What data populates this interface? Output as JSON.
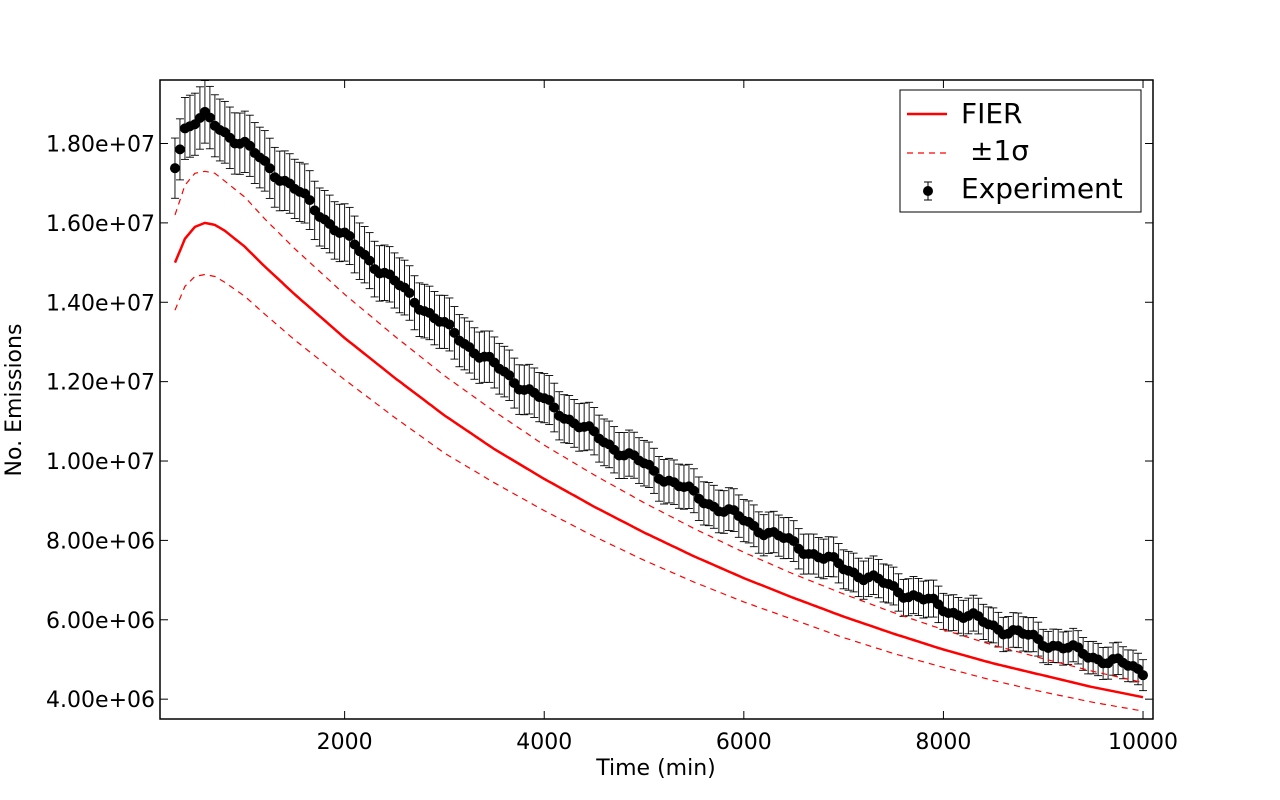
{
  "chart_data": {
    "type": "line",
    "xlabel": "Time (min)",
    "ylabel": "No. Emissions",
    "xlim": [
      150,
      10100
    ],
    "ylim": [
      3500000,
      19600000
    ],
    "x_ticks": [
      2000,
      4000,
      6000,
      8000,
      10000
    ],
    "y_ticks": [
      4000000,
      6000000,
      8000000,
      10000000,
      12000000,
      14000000,
      16000000,
      18000000
    ],
    "x_tick_labels": [
      "2000",
      "4000",
      "6000",
      "8000",
      "10000"
    ],
    "y_tick_labels": [
      "4.00e+06",
      "6.00e+06",
      "8.00e+06",
      "1.00e+07",
      "1.20e+07",
      "1.40e+07",
      "1.60e+07",
      "1.80e+07"
    ],
    "grid": false,
    "legend_position": "top-right",
    "legend": [
      {
        "label": "FIER",
        "style": "solid-line",
        "color": "#ff0000"
      },
      {
        "label": "±1σ",
        "style": "dashed-line",
        "color": "#ff0000"
      },
      {
        "label": "Experiment",
        "style": "marker-errorbar",
        "color": "#000000"
      }
    ],
    "series": [
      {
        "name": "FIER",
        "style": "solid",
        "color": "#ff0000",
        "x": [
          300,
          400,
          500,
          600,
          700,
          800,
          1000,
          1200,
          1500,
          2000,
          2500,
          3000,
          3500,
          4000,
          4500,
          5000,
          5500,
          6000,
          6500,
          7000,
          7500,
          8000,
          8500,
          9000,
          9500,
          10000
        ],
        "y": [
          15000000,
          15600000,
          15900000,
          16000000,
          15950000,
          15800000,
          15400000,
          14900000,
          14200000,
          13100000,
          12100000,
          11150000,
          10300000,
          9550000,
          8850000,
          8200000,
          7600000,
          7050000,
          6550000,
          6080000,
          5650000,
          5250000,
          4900000,
          4600000,
          4300000,
          4050000
        ]
      },
      {
        "name": "±1σ",
        "style": "dashed",
        "color": "#ff0000",
        "x": [
          300,
          400,
          500,
          600,
          700,
          800,
          1000,
          1200,
          1500,
          2000,
          2500,
          3000,
          3500,
          4000,
          4500,
          5000,
          5500,
          6000,
          6500,
          7000,
          7500,
          8000,
          8500,
          9000,
          9500,
          10000
        ],
        "y": [
          16200000,
          16950000,
          17250000,
          17300000,
          17250000,
          17050000,
          16650000,
          16100000,
          15350000,
          14200000,
          13150000,
          12150000,
          11250000,
          10400000,
          9650000,
          8950000,
          8300000,
          7700000,
          7150000,
          6650000,
          6180000,
          5750000,
          5360000,
          5020000,
          4700000,
          4420000
        ]
      },
      {
        "name": "",
        "style": "dashed",
        "color": "#ff0000",
        "x": [
          300,
          400,
          500,
          600,
          700,
          800,
          1000,
          1200,
          1500,
          2000,
          2500,
          3000,
          3500,
          4000,
          4500,
          5000,
          5500,
          6000,
          6500,
          7000,
          7500,
          8000,
          8500,
          9000,
          9500,
          10000
        ],
        "y": [
          13800000,
          14400000,
          14650000,
          14700000,
          14650000,
          14500000,
          14150000,
          13700000,
          13050000,
          12050000,
          11100000,
          10200000,
          9450000,
          8750000,
          8100000,
          7500000,
          6950000,
          6450000,
          6000000,
          5550000,
          5150000,
          4800000,
          4470000,
          4180000,
          3920000,
          3700000
        ]
      },
      {
        "name": "Experiment",
        "style": "markers-errorbars",
        "color": "#000000",
        "x": [
          300,
          400,
          600,
          800,
          1000,
          1200,
          1500,
          2000,
          2500,
          3000,
          3500,
          4000,
          4500,
          5000,
          5500,
          6000,
          6500,
          7000,
          7500,
          8000,
          8500,
          9000,
          9500,
          10000
        ],
        "y": [
          17500000,
          18400000,
          18650000,
          18300000,
          17950000,
          17500000,
          16850000,
          15650000,
          14500000,
          13400000,
          12400000,
          11500000,
          10650000,
          9900000,
          9150000,
          8500000,
          7900000,
          7320000,
          6800000,
          6300000,
          5850000,
          5450000,
          5080000,
          4720000
        ]
      }
    ]
  }
}
